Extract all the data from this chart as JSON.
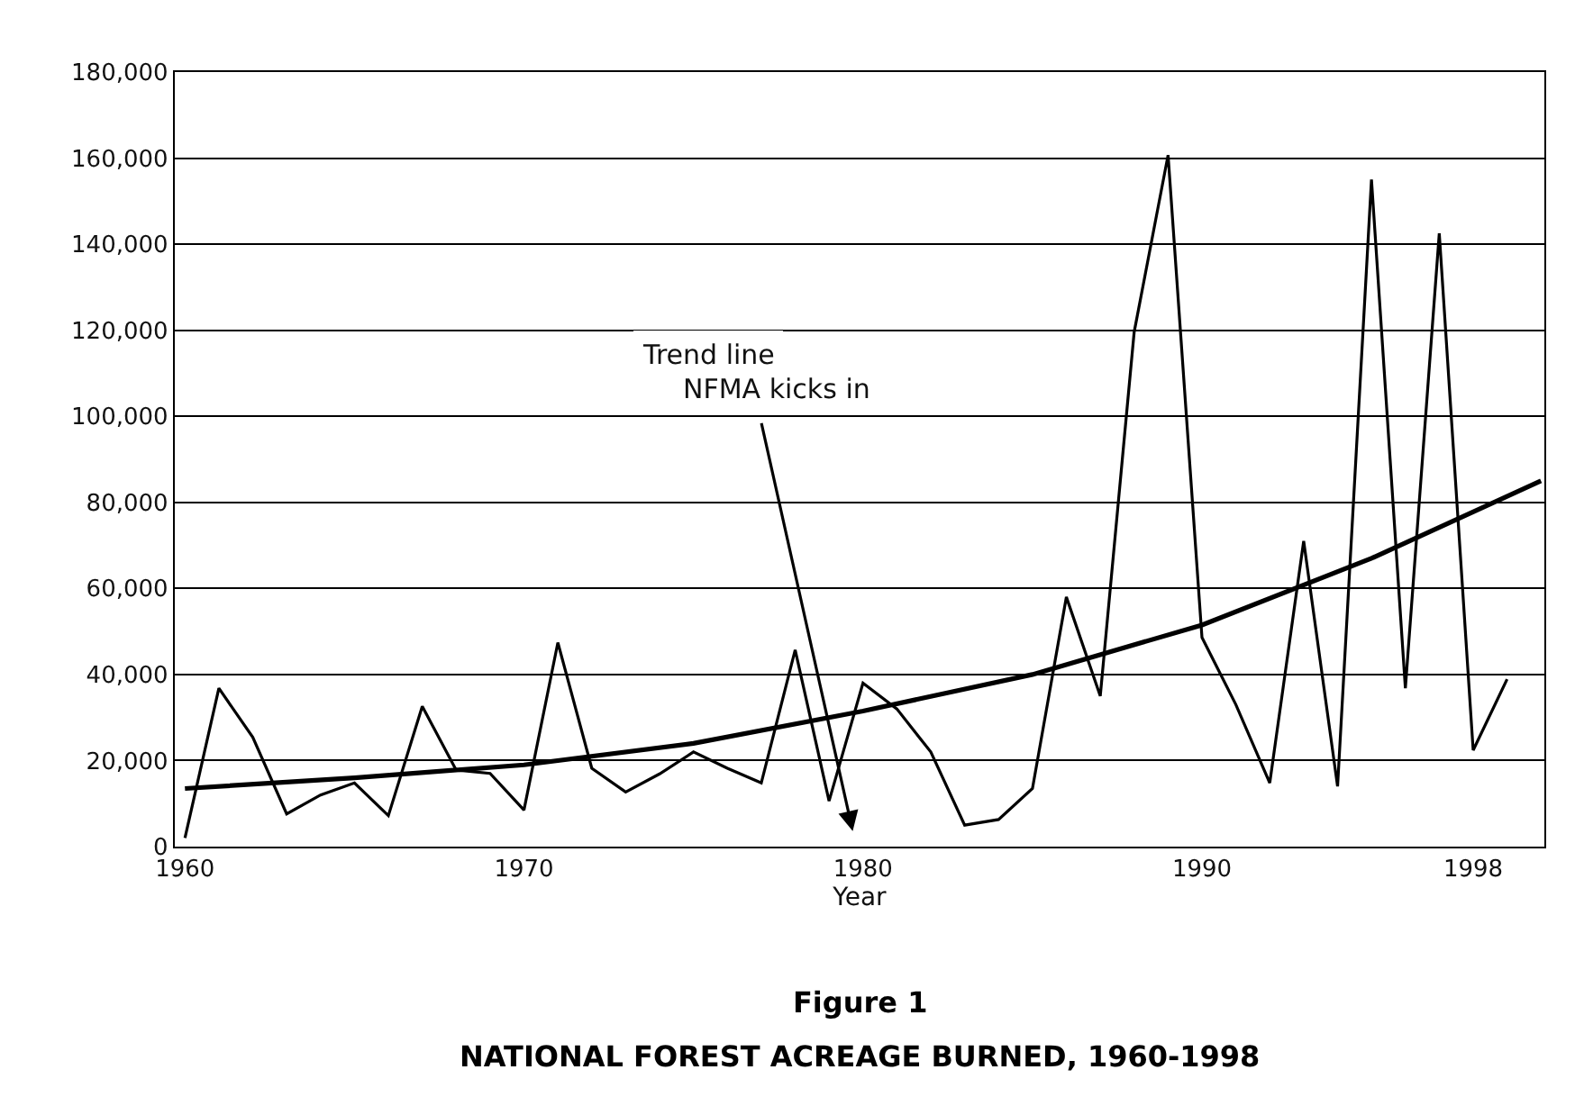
{
  "chart_data": {
    "type": "line",
    "title": "Figure 1",
    "subtitle": "NATIONAL FOREST ACREAGE BURNED, 1960-1998",
    "xlabel": "Year",
    "series": [
      {
        "color": "#000000",
        "x": [
          1960,
          1961,
          1962,
          1963,
          1964,
          1965,
          1966,
          1967,
          1968,
          1969,
          1970,
          1971,
          1972,
          1973,
          1974,
          1975,
          1976,
          1977,
          1978,
          1979,
          1980,
          1981,
          1982,
          1983,
          1984,
          1985,
          1986,
          1987,
          1988,
          1989,
          1990,
          1991,
          1992,
          1993,
          1994,
          1995,
          1996,
          1997,
          1998,
          1999
        ],
        "values": [
          2000,
          36800,
          25400,
          7600,
          12000,
          14800,
          7200,
          32600,
          17800,
          17000,
          8500,
          47400,
          18200,
          12700,
          16900,
          22000,
          18200,
          14800,
          45700,
          10600,
          38000,
          32000,
          22000,
          5000,
          6300,
          13500,
          58000,
          35000,
          119600,
          160700,
          48600,
          33000,
          14800,
          71000,
          14000,
          155000,
          36800,
          142500,
          22400,
          38900
        ]
      },
      {
        "type": "line",
        "color": "#000000",
        "x": [
          1960,
          1965,
          1970,
          1975,
          1980,
          1985,
          1990,
          1995,
          2000
        ],
        "values": [
          13500,
          16000,
          19000,
          24000,
          31500,
          40000,
          51500,
          67000,
          85000
        ]
      }
    ],
    "xlim": [
      1959.7,
      2000.1
    ],
    "xticks": [
      1960,
      1970,
      1980,
      1990,
      1998
    ],
    "ylim": [
      0,
      180000
    ],
    "yticks": [
      0,
      {
        "value": 20000,
        "label": "20,000"
      },
      {
        "value": 40000,
        "label": "40,000"
      },
      {
        "value": 60000,
        "label": "60,000"
      },
      {
        "value": 80000,
        "label": "80,000"
      },
      {
        "value": 100000,
        "label": "100,000"
      },
      {
        "value": 120000,
        "label": "120,000"
      },
      {
        "value": 140000,
        "label": "140,000"
      },
      {
        "value": 160000,
        "label": "160,000"
      },
      {
        "value": 180000,
        "label": "180,000"
      }
    ],
    "grid": "y",
    "annotations": [
      "Trend line",
      "NFMA kicks in"
    ]
  }
}
